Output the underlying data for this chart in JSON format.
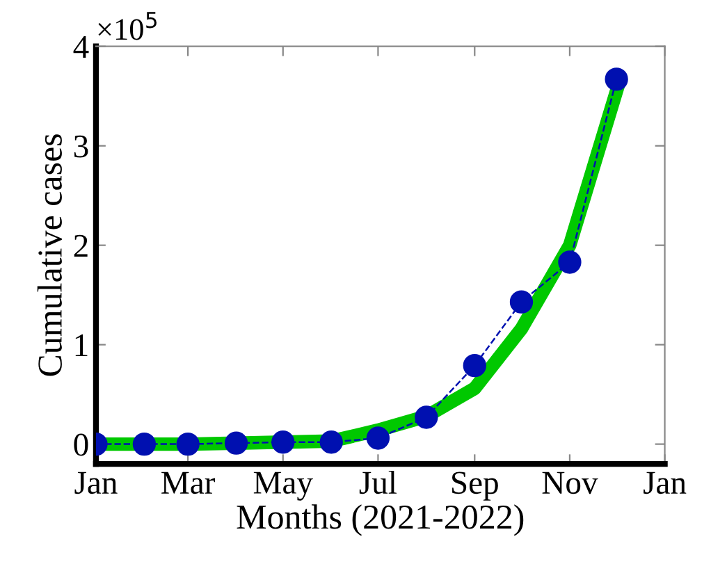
{
  "chart_data": {
    "type": "line",
    "xlabel": "Months (2021-2022)",
    "ylabel": "Cumulative cases",
    "annotations": [
      "×10$^{5}$"
    ],
    "x": [
      "2021-01",
      "2021-02",
      "2021-03",
      "2021-04",
      "2021-05",
      "2021-06",
      "2021-07",
      "2021-08",
      "2021-09",
      "2021-10",
      "2021-11",
      "2021-12"
    ],
    "series": [
      {
        "color": "#00c800",
        "line_style": "solid",
        "marker": "none",
        "values": [
          0,
          0,
          0,
          0.01,
          0.02,
          0.03,
          0.14,
          0.28,
          0.56,
          1.16,
          2.0,
          3.55
        ]
      },
      {
        "color": "#0010b0",
        "line_style": "dashed",
        "marker": "circle",
        "values": [
          0,
          0,
          0,
          0.01,
          0.02,
          0.02,
          0.06,
          0.27,
          0.79,
          1.43,
          1.83,
          3.67
        ]
      }
    ],
    "xlim": [
      "2021-01",
      "2022-01"
    ],
    "xticks": [
      {
        "value": "2021-01",
        "label": "Jan"
      },
      {
        "value": "2021-03",
        "label": "Mar"
      },
      {
        "value": "2021-05",
        "label": "May"
      },
      {
        "value": "2021-07",
        "label": "Jul"
      },
      {
        "value": "2021-09",
        "label": "Sep"
      },
      {
        "value": "2021-11",
        "label": "Nov"
      },
      {
        "value": "2022-01",
        "label": "Jan"
      }
    ],
    "ylim": [
      -0.2,
      4
    ],
    "yticks": [
      0,
      1,
      2,
      3,
      4
    ],
    "grid": false,
    "legend": false
  }
}
